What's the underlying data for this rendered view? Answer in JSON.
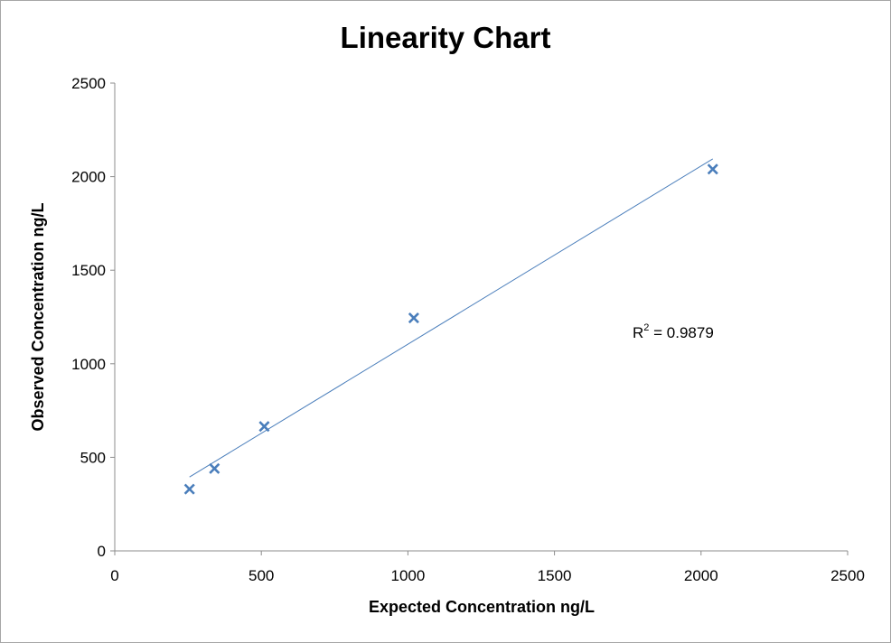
{
  "chart_data": {
    "type": "scatter",
    "title": "Linearity Chart",
    "xlabel": "Expected Concentration ng/L",
    "ylabel": "Observed Concentration ng/L",
    "xlim": [
      0,
      2500
    ],
    "ylim": [
      0,
      2500
    ],
    "x_ticks": [
      0,
      500,
      1000,
      1500,
      2000,
      2500
    ],
    "y_ticks": [
      0,
      500,
      1000,
      1500,
      2000,
      2500
    ],
    "grid": false,
    "legend": "none",
    "series": [
      {
        "x": [
          255,
          340,
          510,
          1020,
          2040
        ],
        "y": [
          330,
          440,
          665,
          1245,
          2040
        ],
        "marker": "x",
        "color": "#4a7ebb"
      }
    ],
    "trendline": {
      "type": "linear",
      "x": [
        255,
        2040
      ],
      "y": [
        395,
        2095
      ],
      "color": "#4a7ebb"
    },
    "annotation": {
      "base": "R",
      "sup": "2",
      "rest": " = 0.9879"
    }
  }
}
